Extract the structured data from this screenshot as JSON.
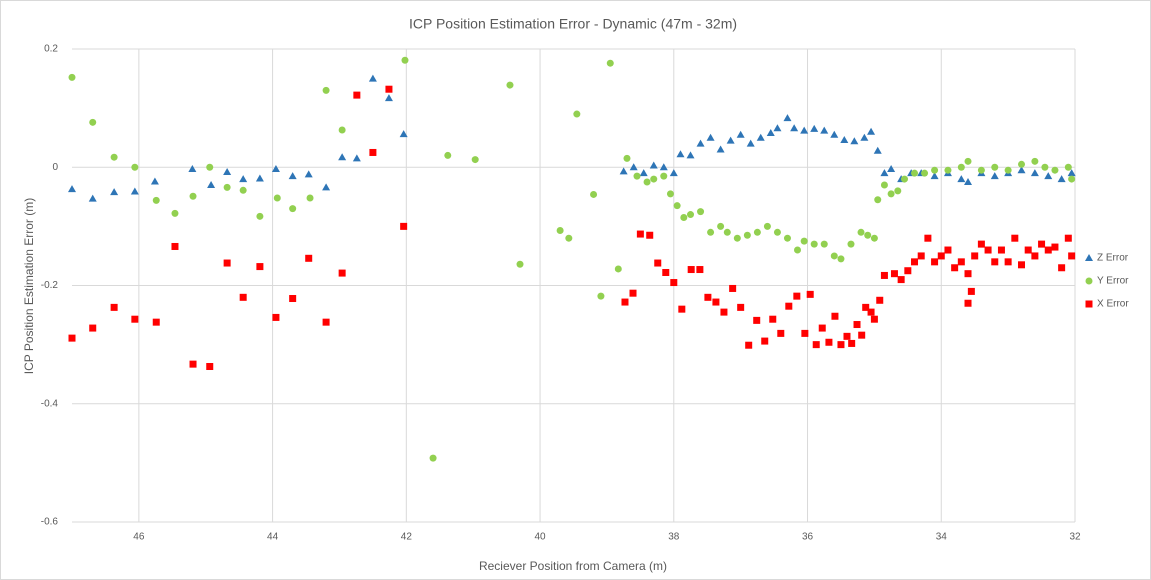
{
  "chart_data": {
    "type": "scatter",
    "title": "ICP Position Estimation Error - Dynamic (47m - 32m)",
    "x_label": "Reciever Position from Camera (m)",
    "y_label": "ICP Position Estimation Error (m)",
    "xlim": [
      47,
      32
    ],
    "xticks": [
      46,
      44,
      42,
      40,
      38,
      36,
      34,
      32
    ],
    "ylim": [
      -0.6,
      0.2
    ],
    "yticks": [
      -0.6,
      -0.4,
      -0.2,
      0,
      0.2
    ],
    "grid": true,
    "legend": "right",
    "series": [
      {
        "name": "Z Error",
        "color": "#2e75b6",
        "marker": "triangle",
        "x": [
          47,
          46.69,
          46.37,
          46.06,
          45.76,
          45.2,
          44.92,
          44.68,
          44.44,
          44.19,
          43.95,
          43.7,
          43.46,
          43.2,
          42.96,
          42.74,
          42.5,
          42.26,
          42.04,
          38.75,
          38.6,
          38.45,
          38.3,
          38.15,
          38.0,
          37.9,
          37.75,
          37.6,
          37.45,
          37.3,
          37.15,
          37.0,
          36.85,
          36.7,
          36.55,
          36.45,
          36.3,
          36.2,
          36.05,
          35.9,
          35.75,
          35.6,
          35.45,
          35.3,
          35.15,
          35.05,
          34.95,
          34.85,
          34.75,
          34.6,
          34.45,
          34.3,
          34.1,
          33.9,
          33.7,
          33.6,
          33.4,
          33.2,
          33.0,
          32.8,
          32.6,
          32.4,
          32.2,
          32.05
        ],
        "values": [
          -0.037,
          -0.053,
          -0.042,
          -0.041,
          -0.024,
          -0.003,
          -0.03,
          -0.008,
          -0.02,
          -0.019,
          -0.003,
          -0.015,
          -0.012,
          -0.034,
          0.017,
          0.015,
          0.15,
          0.117,
          0.056,
          -0.007,
          0.0,
          -0.01,
          0.003,
          0.0,
          -0.01,
          0.022,
          0.02,
          0.04,
          0.05,
          0.03,
          0.045,
          0.055,
          0.04,
          0.05,
          0.058,
          0.066,
          0.083,
          0.066,
          0.062,
          0.065,
          0.062,
          0.055,
          0.046,
          0.044,
          0.05,
          0.06,
          0.028,
          -0.01,
          -0.003,
          -0.02,
          -0.01,
          -0.01,
          -0.015,
          -0.01,
          -0.02,
          -0.025,
          -0.01,
          -0.015,
          -0.01,
          -0.005,
          -0.01,
          -0.015,
          -0.02,
          -0.01
        ]
      },
      {
        "name": "Y Error",
        "color": "#92d050",
        "marker": "circle",
        "x": [
          47,
          46.69,
          46.37,
          46.06,
          45.74,
          45.46,
          45.19,
          44.94,
          44.68,
          44.44,
          44.19,
          43.93,
          43.7,
          43.44,
          43.2,
          42.96,
          42.02,
          41.6,
          41.38,
          40.97,
          40.45,
          40.3,
          39.7,
          39.57,
          39.45,
          39.2,
          39.09,
          38.95,
          38.83,
          38.7,
          38.55,
          38.4,
          38.3,
          38.15,
          38.05,
          37.95,
          37.85,
          37.75,
          37.6,
          37.45,
          37.3,
          37.2,
          37.05,
          36.9,
          36.75,
          36.6,
          36.45,
          36.3,
          36.15,
          36.05,
          35.9,
          35.75,
          35.6,
          35.5,
          35.35,
          35.2,
          35.1,
          35.0,
          34.95,
          34.85,
          34.75,
          34.65,
          34.55,
          34.4,
          34.25,
          34.1,
          33.9,
          33.7,
          33.6,
          33.4,
          33.2,
          33.0,
          32.8,
          32.6,
          32.45,
          32.3,
          32.1,
          32.05
        ],
        "values": [
          0.152,
          0.076,
          0.017,
          0.0,
          -0.056,
          -0.078,
          -0.049,
          0.0,
          -0.034,
          -0.039,
          -0.083,
          -0.052,
          -0.07,
          -0.052,
          0.13,
          0.063,
          0.181,
          -0.492,
          0.02,
          0.013,
          0.139,
          -0.164,
          -0.107,
          -0.12,
          0.09,
          -0.046,
          -0.218,
          0.176,
          -0.172,
          0.015,
          -0.015,
          -0.025,
          -0.02,
          -0.015,
          -0.045,
          -0.065,
          -0.085,
          -0.08,
          -0.075,
          -0.11,
          -0.1,
          -0.11,
          -0.12,
          -0.115,
          -0.11,
          -0.1,
          -0.11,
          -0.12,
          -0.14,
          -0.125,
          -0.13,
          -0.13,
          -0.15,
          -0.155,
          -0.13,
          -0.11,
          -0.115,
          -0.12,
          -0.055,
          -0.03,
          -0.045,
          -0.04,
          -0.02,
          -0.01,
          -0.01,
          -0.005,
          -0.005,
          0.0,
          0.01,
          -0.005,
          0.0,
          -0.005,
          0.005,
          0.01,
          0.0,
          -0.005,
          0.0,
          -0.02
        ]
      },
      {
        "name": "X Error",
        "color": "#ff0000",
        "marker": "square",
        "x": [
          47,
          46.69,
          46.37,
          46.06,
          45.74,
          45.46,
          45.19,
          44.94,
          44.68,
          44.44,
          44.19,
          43.95,
          43.7,
          43.46,
          43.2,
          42.96,
          42.74,
          42.5,
          42.26,
          42.04,
          38.73,
          38.61,
          38.5,
          38.36,
          38.24,
          38.12,
          38.0,
          37.88,
          37.74,
          37.61,
          37.49,
          37.37,
          37.25,
          37.12,
          37.0,
          36.88,
          36.76,
          36.64,
          36.52,
          36.4,
          36.28,
          36.16,
          36.04,
          35.96,
          35.87,
          35.78,
          35.68,
          35.59,
          35.5,
          35.41,
          35.34,
          35.26,
          35.19,
          35.13,
          35.05,
          35.0,
          34.92,
          34.85,
          34.7,
          34.6,
          34.5,
          34.4,
          34.3,
          34.2,
          34.1,
          34.0,
          33.9,
          33.8,
          33.7,
          33.6,
          33.6,
          33.55,
          33.5,
          33.4,
          33.3,
          33.2,
          33.1,
          33.0,
          32.9,
          32.8,
          32.7,
          32.6,
          32.5,
          32.4,
          32.3,
          32.2,
          32.1,
          32.05
        ],
        "values": [
          -0.289,
          -0.272,
          -0.237,
          -0.257,
          -0.262,
          -0.134,
          -0.333,
          -0.337,
          -0.162,
          -0.22,
          -0.168,
          -0.254,
          -0.222,
          -0.154,
          -0.262,
          -0.179,
          0.122,
          0.025,
          0.132,
          -0.1,
          -0.228,
          -0.213,
          -0.113,
          -0.115,
          -0.162,
          -0.178,
          -0.195,
          -0.24,
          -0.173,
          -0.173,
          -0.22,
          -0.228,
          -0.245,
          -0.205,
          -0.237,
          -0.301,
          -0.259,
          -0.294,
          -0.257,
          -0.281,
          -0.235,
          -0.218,
          -0.281,
          -0.215,
          -0.3,
          -0.272,
          -0.296,
          -0.252,
          -0.3,
          -0.286,
          -0.298,
          -0.266,
          -0.284,
          -0.237,
          -0.245,
          -0.257,
          -0.225,
          -0.183,
          -0.18,
          -0.19,
          -0.175,
          -0.16,
          -0.15,
          -0.12,
          -0.16,
          -0.15,
          -0.14,
          -0.17,
          -0.16,
          -0.18,
          -0.23,
          -0.21,
          -0.15,
          -0.13,
          -0.14,
          -0.16,
          -0.14,
          -0.16,
          -0.12,
          -0.165,
          -0.14,
          -0.15,
          -0.13,
          -0.14,
          -0.135,
          -0.17,
          -0.12,
          -0.15
        ]
      }
    ]
  }
}
